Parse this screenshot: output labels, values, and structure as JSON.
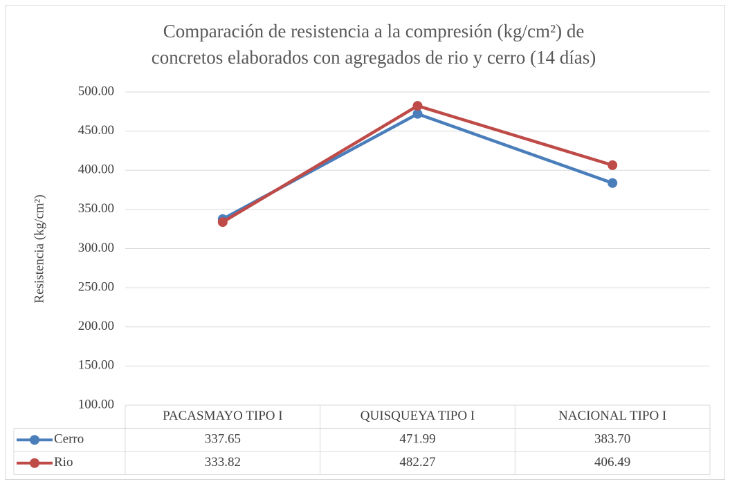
{
  "chart_data": {
    "type": "line",
    "title": [
      "Comparación de resistencia a la compresión (kg/cm²) de",
      "concretos elaborados con agregados de rio y cerro (14 días)"
    ],
    "y_label": "Resistencia (kg/cm²)",
    "categories": [
      "PACASMAYO TIPO I",
      "QUISQUEYA TIPO I",
      "NACIONAL TIPO I"
    ],
    "series": [
      {
        "name": "Cerro",
        "color": "#4a7ebb",
        "values": [
          337.65,
          471.99,
          383.7
        ],
        "value_labels": [
          "337.65",
          "471.99",
          "383.70"
        ]
      },
      {
        "name": "Rio",
        "color": "#be4b48",
        "values": [
          333.82,
          482.27,
          406.49
        ],
        "value_labels": [
          "333.82",
          "482.27",
          "406.49"
        ]
      }
    ],
    "ylim": [
      100,
      500
    ],
    "yticks": [
      {
        "value": 100,
        "label": "100.00"
      },
      {
        "value": 150,
        "label": "150.00"
      },
      {
        "value": 200,
        "label": "200.00"
      },
      {
        "value": 250,
        "label": "250.00"
      },
      {
        "value": 300,
        "label": "300.00"
      },
      {
        "value": 350,
        "label": "350.00"
      },
      {
        "value": 400,
        "label": "400.00"
      },
      {
        "value": 450,
        "label": "450.00"
      },
      {
        "value": 500,
        "label": "500.00"
      }
    ],
    "grid": true,
    "data_table": true
  }
}
